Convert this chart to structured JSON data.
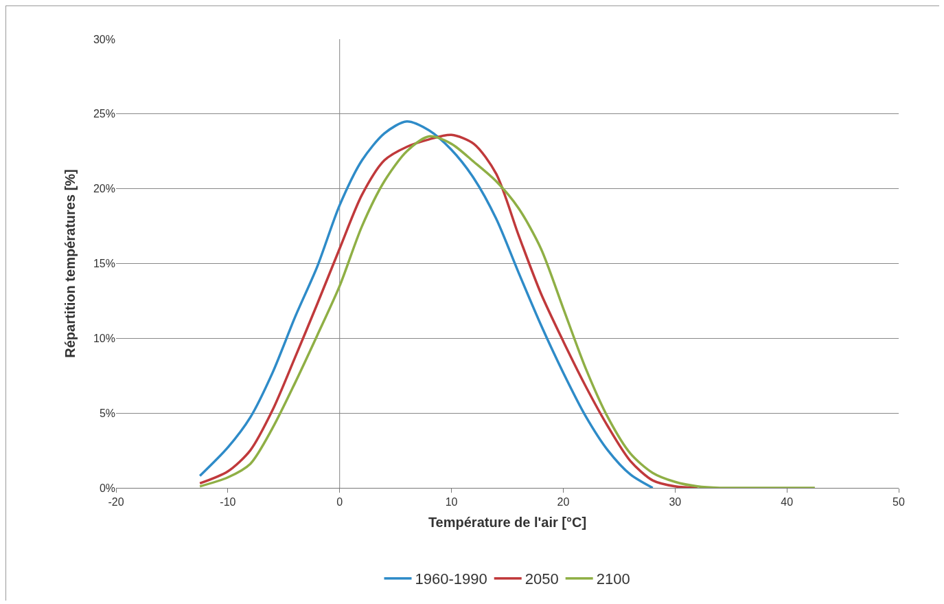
{
  "chart_data": {
    "type": "line",
    "xlabel": "Température de l'air [°C]",
    "ylabel": "Répartition températures [%]",
    "x": [
      -12.5,
      -10,
      -8,
      -6,
      -4,
      -2,
      0,
      2,
      4,
      6,
      8,
      10,
      12,
      14,
      16,
      18,
      20,
      22,
      24,
      26,
      28,
      30,
      32,
      34,
      36,
      38,
      40,
      42.5
    ],
    "series": [
      {
        "name": "1960-1990",
        "color": "#2e8bc8",
        "values": [
          0.8,
          2.7,
          4.7,
          7.7,
          11.4,
          14.8,
          18.9,
          21.9,
          23.7,
          24.5,
          23.9,
          22.6,
          20.7,
          18,
          14.4,
          10.9,
          7.7,
          4.8,
          2.5,
          0.9,
          0,
          null,
          null,
          null,
          null,
          null,
          null,
          null
        ]
      },
      {
        "name": "2050",
        "color": "#c0393b",
        "values": [
          0.3,
          1.1,
          2.5,
          5.2,
          8.7,
          12.3,
          16,
          19.6,
          21.9,
          22.8,
          23.3,
          23.6,
          23,
          21,
          16.9,
          13,
          9.8,
          6.8,
          4.1,
          1.8,
          0.5,
          0.1,
          0,
          null,
          null,
          null,
          null,
          null
        ]
      },
      {
        "name": "2100",
        "color": "#8faf45",
        "values": [
          0.1,
          0.7,
          1.6,
          4,
          7,
          10.2,
          13.5,
          17.5,
          20.5,
          22.5,
          23.5,
          23,
          21.8,
          20.5,
          18.7,
          16,
          12,
          8,
          4.7,
          2.3,
          1,
          0.4,
          0.1,
          0,
          0,
          0,
          0,
          0
        ]
      }
    ],
    "xlim": [
      -20,
      50
    ],
    "xticks": [
      -20,
      -10,
      0,
      10,
      20,
      30,
      40,
      50
    ],
    "ylim": [
      0,
      30
    ],
    "yticks": [
      {
        "value": 0,
        "label": "0%"
      },
      {
        "value": 5,
        "label": "5%"
      },
      {
        "value": 10,
        "label": "10%"
      },
      {
        "value": 15,
        "label": "15%"
      },
      {
        "value": 20,
        "label": "20%"
      },
      {
        "value": 25,
        "label": "25%"
      },
      {
        "value": 30,
        "label": "30%"
      }
    ],
    "ref_lines": [
      {
        "axis": "x",
        "value": 0,
        "color": "#808080"
      }
    ],
    "grid": "y",
    "legend": "bottom",
    "marker": "none",
    "line_style": "solid"
  }
}
